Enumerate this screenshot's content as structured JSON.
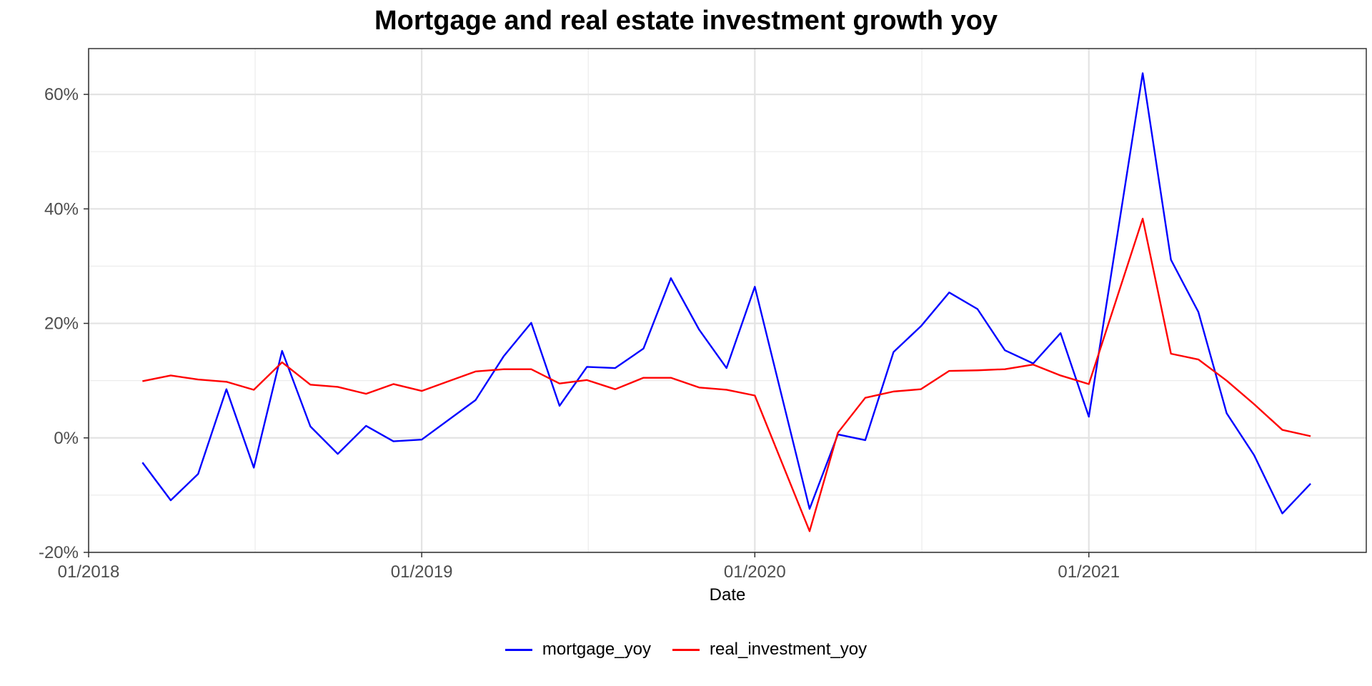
{
  "chart_data": {
    "type": "line",
    "title": "Mortgage and real estate investment growth yoy",
    "xlabel": "Date",
    "ylabel": "",
    "xlim": [
      "2018-01-01",
      "2021-11-01"
    ],
    "ylim": [
      -20,
      68
    ],
    "x_ticks": [
      "2018-01-01",
      "2019-01-01",
      "2020-01-01",
      "2021-01-01"
    ],
    "x_tick_labels": [
      "01/2018",
      "01/2019",
      "01/2020",
      "01/2021"
    ],
    "y_ticks": [
      -20,
      0,
      20,
      40,
      60
    ],
    "y_tick_labels": [
      "-20%",
      "0%",
      "20%",
      "40%",
      "60%"
    ],
    "grid": true,
    "legend_position": "bottom",
    "x": [
      "2018-03-01",
      "2018-04-01",
      "2018-05-01",
      "2018-06-01",
      "2018-07-01",
      "2018-08-01",
      "2018-09-01",
      "2018-10-01",
      "2018-11-01",
      "2018-12-01",
      "2019-01-01",
      "2019-03-01",
      "2019-04-01",
      "2019-05-01",
      "2019-06-01",
      "2019-07-01",
      "2019-08-01",
      "2019-09-01",
      "2019-10-01",
      "2019-11-01",
      "2019-12-01",
      "2020-01-01",
      "2020-03-01",
      "2020-04-01",
      "2020-05-01",
      "2020-06-01",
      "2020-07-01",
      "2020-08-01",
      "2020-09-01",
      "2020-10-01",
      "2020-11-01",
      "2020-12-01",
      "2021-01-01",
      "2021-03-01",
      "2021-04-01",
      "2021-05-01",
      "2021-06-01",
      "2021-07-01",
      "2021-08-01",
      "2021-09-01"
    ],
    "series": [
      {
        "name": "mortgage_yoy",
        "color": "#0000ff",
        "values": [
          -4.3,
          -10.9,
          -6.3,
          8.5,
          -5.2,
          15.2,
          2.0,
          -2.8,
          2.1,
          -0.6,
          -0.3,
          6.6,
          14.3,
          20.1,
          5.6,
          12.4,
          12.2,
          15.6,
          27.9,
          18.9,
          12.2,
          26.4,
          -12.4,
          0.6,
          -0.4,
          15.0,
          19.5,
          25.4,
          22.5,
          15.3,
          13.0,
          18.3,
          3.7,
          63.7,
          31.1,
          22.0,
          4.3,
          -3.0,
          -13.2,
          -8.0
        ]
      },
      {
        "name": "real_investment_yoy",
        "color": "#ff0000",
        "values": [
          9.9,
          10.9,
          10.2,
          9.8,
          8.4,
          13.2,
          9.3,
          8.9,
          7.7,
          9.4,
          8.2,
          11.6,
          12.0,
          12.0,
          9.5,
          10.1,
          8.5,
          10.5,
          10.5,
          8.8,
          8.4,
          7.4,
          -16.3,
          0.9,
          7.0,
          8.1,
          8.5,
          11.7,
          11.8,
          12.0,
          12.8,
          10.9,
          9.4,
          38.3,
          14.7,
          13.7,
          10.0,
          5.9,
          1.4,
          0.3
        ]
      }
    ]
  }
}
